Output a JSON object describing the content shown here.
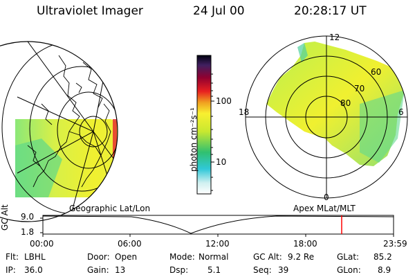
{
  "header": {
    "title": "Ultraviolet Imager",
    "date": "24 Jul 00",
    "time": "20:28:17 UT"
  },
  "colorbar": {
    "unit_label": "photon cm⁻²s⁻¹",
    "tick_100": "100",
    "tick_10": "10",
    "scale": "log"
  },
  "polar_plot": {
    "mlt_labels": {
      "top": "12",
      "bottom": "0",
      "left": "18",
      "right": "6"
    },
    "lat_labels": [
      "60",
      "70",
      "80"
    ]
  },
  "orbit_panel": {
    "ylabel": "GC Alt",
    "y_ticks": [
      "9.0",
      "1.8"
    ],
    "left_caption": "Geographic Lat/Lon",
    "right_caption": "Apex MLat/MLT",
    "x_ticks": [
      "00:00",
      "06:00",
      "12:00",
      "18:00",
      "23:59"
    ],
    "marker_color": "#ff0000"
  },
  "status": {
    "filter_label": "Flt:",
    "filter_value": "LBHL",
    "door_label": "Door:",
    "door_value": "Open",
    "mode_label": "Mode:",
    "mode_value": "Normal",
    "gcalt_label": "GC Alt:",
    "gcalt_value": "9.2 Re",
    "glat_label": "GLat:",
    "glat_value": "85.2",
    "ip_label": "IP:",
    "ip_value": "36.0",
    "gain_label": "Gain:",
    "gain_value": "13",
    "dsp_label": "Dsp:",
    "dsp_value": "5.1",
    "seq_label": "Seq:",
    "seq_value": "39",
    "glon_label": "GLon:",
    "glon_value": "8.9"
  }
}
